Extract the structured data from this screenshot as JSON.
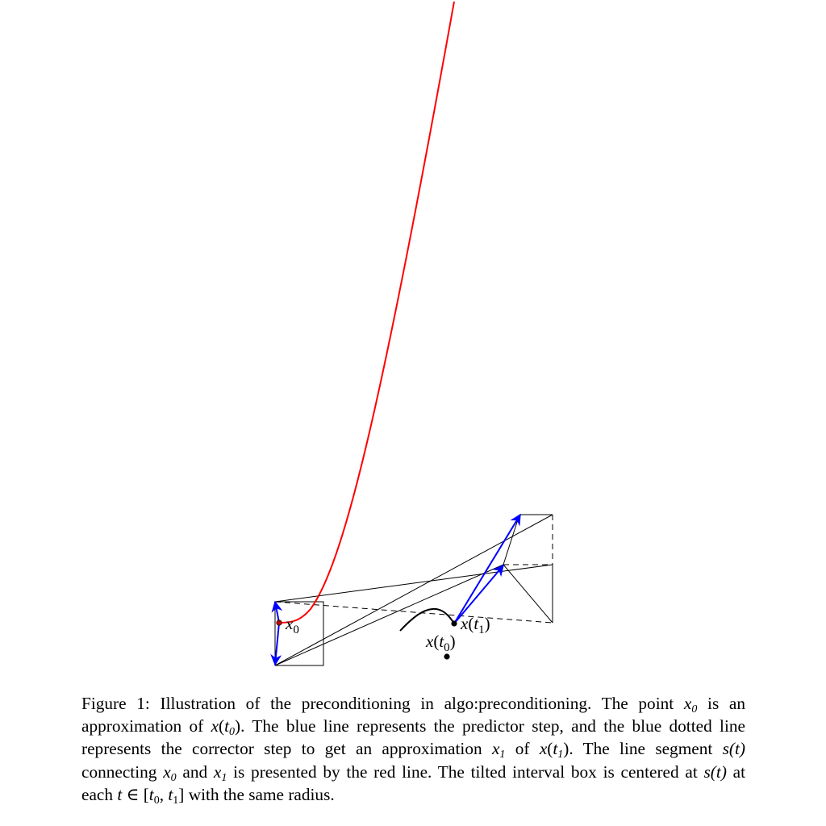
{
  "figure": {
    "labels": {
      "x0_point": {
        "base": "x",
        "sub": "0"
      },
      "x_t1": {
        "base": "x",
        "sub": "1"
      },
      "x_t0": {
        "base": "x",
        "sub": "0"
      }
    },
    "colors": {
      "segment": "#ff0000",
      "predictor_corrector": "#0000ff",
      "box": "#000000",
      "point": "#000000",
      "start_point": "#cc0000"
    }
  },
  "caption": {
    "figure_label": "Figure 1:",
    "text_1": "Illustration of the preconditioning in algo:preconditioning. The point",
    "x0_a": {
      "base": "x",
      "sub": "0"
    },
    "text_2": "is an approximation of",
    "xt0_a": {
      "base": "x",
      "t": "t",
      "sub": "0"
    },
    "text_3": ". The blue line represents the predictor step, and the blue dotted line represents the corrector step to get an approximation",
    "x1_a": {
      "base": "x",
      "sub": "1"
    },
    "text_4": "of",
    "xt1_a": {
      "base": "x",
      "t": "t",
      "sub": "1"
    },
    "text_5": ". The line segment",
    "st_a": "s(t)",
    "text_6": "connecting",
    "x0_b": {
      "base": "x",
      "sub": "0"
    },
    "text_7": "and",
    "x1_b": {
      "base": "x",
      "sub": "1"
    },
    "text_8": "is presented by the red line. The tilted interval box is centered at",
    "st_b": "s(t)",
    "text_9": "at each",
    "t_var": "t",
    "in_symbol": "∈",
    "interval": {
      "t": "t",
      "sub0": "0",
      "sub1": "1"
    },
    "text_10": "with the same radius."
  }
}
